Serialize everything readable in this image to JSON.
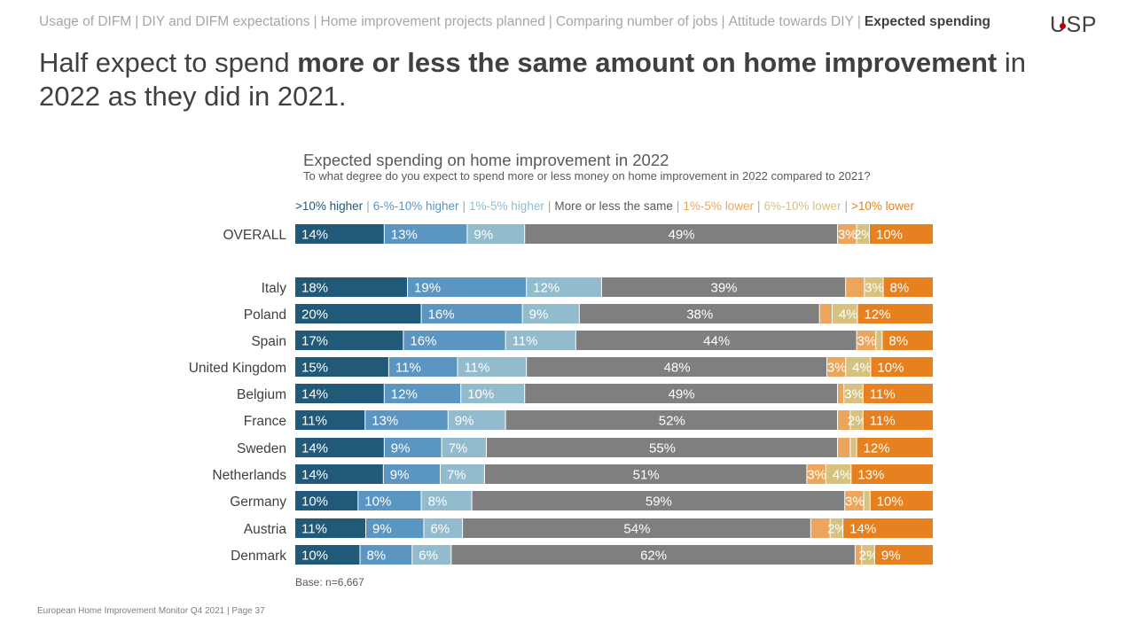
{
  "breadcrumb": [
    {
      "label": "Usage of DIFM",
      "active": false
    },
    {
      "label": "DIY and DIFM expectations",
      "active": false
    },
    {
      "label": "Home improvement projects planned",
      "active": false
    },
    {
      "label": "Comparing number of jobs",
      "active": false
    },
    {
      "label": "Attitude towards DIY",
      "active": false
    },
    {
      "label": "Expected spending",
      "active": true
    }
  ],
  "logo": {
    "text": "USP"
  },
  "headline": {
    "part1": "Half expect to spend ",
    "bold": "more or less the same amount on home improvement",
    "part2": " in 2022 as they did in 2021."
  },
  "chart_data": {
    "type": "bar",
    "orientation": "horizontal",
    "stacked": "100%",
    "title": "Expected spending on home improvement in 2022",
    "subtitle": "To what degree do you expect to spend more or less money on home improvement in 2022 compared to 2021?",
    "legend_position": "top",
    "series": [
      {
        "name": ">10% higher",
        "color": "#215a78",
        "label_color": "#ffffff"
      },
      {
        "name": "6-%-10% higher",
        "color": "#5b95c1",
        "label_color": "#ffffff"
      },
      {
        "name": "1%-5% higher",
        "color": "#92bccd",
        "label_color": "#ffffff"
      },
      {
        "name": "More or less the same",
        "color": "#7f7f7f",
        "label_color": "#ffffff"
      },
      {
        "name": "1%-5% lower",
        "color": "#eba55c",
        "label_color": "#ffffff"
      },
      {
        "name": "6%-10% lower",
        "color": "#d6c27e",
        "label_color": "#ffffff"
      },
      {
        "name": ">10% lower",
        "color": "#e7801f",
        "label_color": "#ffffff"
      }
    ],
    "legend_text_colors": [
      "#215a78",
      "#5b95c1",
      "#92bccd",
      "#595959",
      "#eba55c",
      "#d6c27e",
      "#e7801f"
    ],
    "categories": [
      "OVERALL",
      "Italy",
      "Poland",
      "Spain",
      "United Kingdom",
      "Belgium",
      "France",
      "Sweden",
      "Netherlands",
      "Germany",
      "Austria",
      "Denmark"
    ],
    "values": [
      [
        14,
        13,
        9,
        49,
        3,
        2,
        10
      ],
      [
        18,
        19,
        12,
        39,
        3,
        3,
        8
      ],
      [
        20,
        16,
        9,
        38,
        2,
        4,
        12
      ],
      [
        17,
        16,
        11,
        44,
        3,
        1,
        8
      ],
      [
        15,
        11,
        11,
        48,
        3,
        4,
        10
      ],
      [
        14,
        12,
        10,
        49,
        1,
        3,
        11
      ],
      [
        11,
        13,
        9,
        52,
        2,
        2,
        11
      ],
      [
        14,
        9,
        7,
        55,
        2,
        1,
        12
      ],
      [
        14,
        9,
        7,
        51,
        3,
        4,
        13
      ],
      [
        10,
        10,
        8,
        59,
        3,
        1,
        10
      ],
      [
        11,
        9,
        6,
        54,
        3,
        2,
        14
      ],
      [
        10,
        8,
        6,
        62,
        1,
        2,
        9
      ]
    ],
    "labels": [
      [
        "14%",
        "13%",
        "9%",
        "49%",
        "3%",
        "2%",
        "10%"
      ],
      [
        "18%",
        "19%",
        "12%",
        "39%",
        "",
        "3%",
        "8%"
      ],
      [
        "20%",
        "16%",
        "9%",
        "38%",
        "",
        "4%",
        "12%"
      ],
      [
        "17%",
        "16%",
        "11%",
        "44%",
        "3%",
        "",
        "8%"
      ],
      [
        "15%",
        "11%",
        "11%",
        "48%",
        "3%",
        "4%",
        "10%"
      ],
      [
        "14%",
        "12%",
        "10%",
        "49%",
        "",
        "3%",
        "11%"
      ],
      [
        "11%",
        "13%",
        "9%",
        "52%",
        "",
        "2%",
        "11%"
      ],
      [
        "14%",
        "9%",
        "7%",
        "55%",
        "",
        "",
        "12%"
      ],
      [
        "14%",
        "9%",
        "7%",
        "51%",
        "3%",
        "4%",
        "13%"
      ],
      [
        "10%",
        "10%",
        "8%",
        "59%",
        "3%",
        "",
        "10%"
      ],
      [
        "11%",
        "9%",
        "6%",
        "54%",
        "",
        "2%",
        "14%"
      ],
      [
        "10%",
        "8%",
        "6%",
        "62%",
        "",
        "2%",
        "9%"
      ]
    ]
  },
  "base_note": "Base: n=6,667",
  "footer": "European Home Improvement Monitor Q4 2021 | Page 37"
}
